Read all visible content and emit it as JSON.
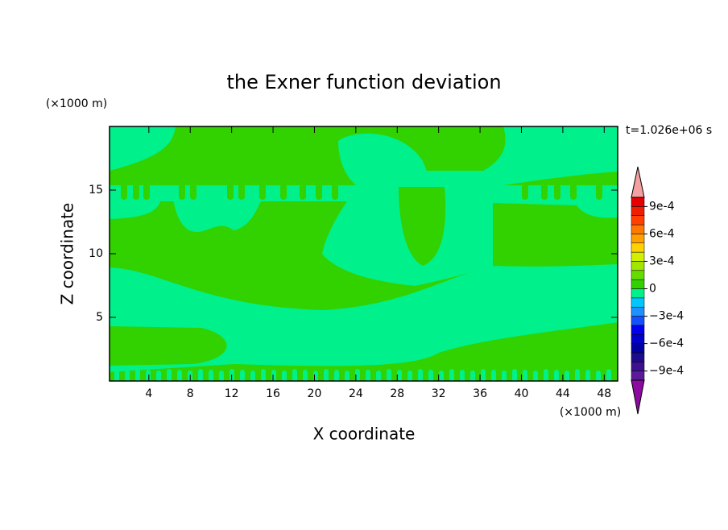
{
  "chart_data": {
    "type": "contour",
    "title": "the Exner function deviation",
    "x_label": "X coordinate",
    "y_label": "Z coordinate",
    "x_unit": "(×1000 m)",
    "y_unit": "(×1000 m)",
    "annotation": "t=1.026e+06 s",
    "xlim": [
      0.2,
      49.3
    ],
    "ylim": [
      0,
      20
    ],
    "xticks": [
      4,
      8,
      12,
      16,
      20,
      24,
      28,
      32,
      36,
      40,
      44,
      48
    ],
    "yticks": [
      5,
      10,
      15
    ],
    "colorbar": {
      "levels": [
        -0.001,
        -0.0009,
        -0.0008,
        -0.0007,
        -0.0006,
        -0.0005,
        -0.0004,
        -0.0003,
        -0.0002,
        -0.0001,
        0,
        0.0001,
        0.0002,
        0.0003,
        0.0004,
        0.0005,
        0.0006,
        0.0007,
        0.0008,
        0.0009,
        0.001
      ],
      "colors": [
        "#5a1a9a",
        "#3c1090",
        "#1e0a8c",
        "#0000a0",
        "#0000c8",
        "#0000f0",
        "#1450ff",
        "#1e90ff",
        "#00c8ff",
        "#00f08c",
        "#32d200",
        "#64dc00",
        "#a0e600",
        "#d2f000",
        "#ffd200",
        "#ffa000",
        "#ff7800",
        "#ff4000",
        "#f01e00",
        "#e60000"
      ],
      "under_color": "#8c0aa0",
      "over_color": "#f4a0a0",
      "ticks": [
        {
          "value": 0.0009,
          "label": "9e-4"
        },
        {
          "value": 0.0006,
          "label": "6e-4"
        },
        {
          "value": 0.0003,
          "label": "3e-4"
        },
        0,
        {
          "value": -0.0003,
          "label": "−3e-4"
        },
        {
          "value": -0.0006,
          "label": "−6e-4"
        },
        {
          "value": -0.0009,
          "label": "−9e-4"
        }
      ]
    }
  }
}
